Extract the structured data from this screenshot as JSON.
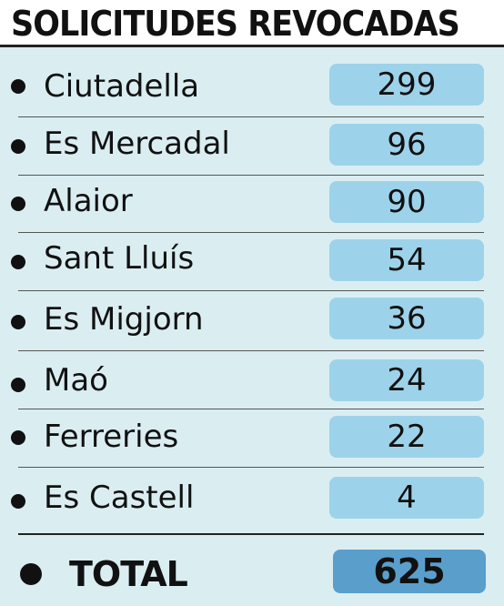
{
  "title": "SOLICITUDES REVOCADAS",
  "rows": [
    {
      "label": "Ciutadella",
      "value": "299"
    },
    {
      "label": "Es Mercadal",
      "value": "96"
    },
    {
      "label": "Alaior",
      "value": "90"
    },
    {
      "label": "Sant Lluís",
      "value": "54"
    },
    {
      "label": "Es Migjorn",
      "value": "36"
    },
    {
      "label": "Maó",
      "value": "24"
    },
    {
      "label": "Ferreries",
      "value": "22"
    },
    {
      "label": "Es Castell",
      "value": "4"
    }
  ],
  "total": {
    "label": "TOTAL",
    "value": "625"
  },
  "colors": {
    "panel_background": "#daeef2",
    "value_box": "#9dd3ea",
    "total_box": "#5a9fcc",
    "text": "#111111"
  }
}
